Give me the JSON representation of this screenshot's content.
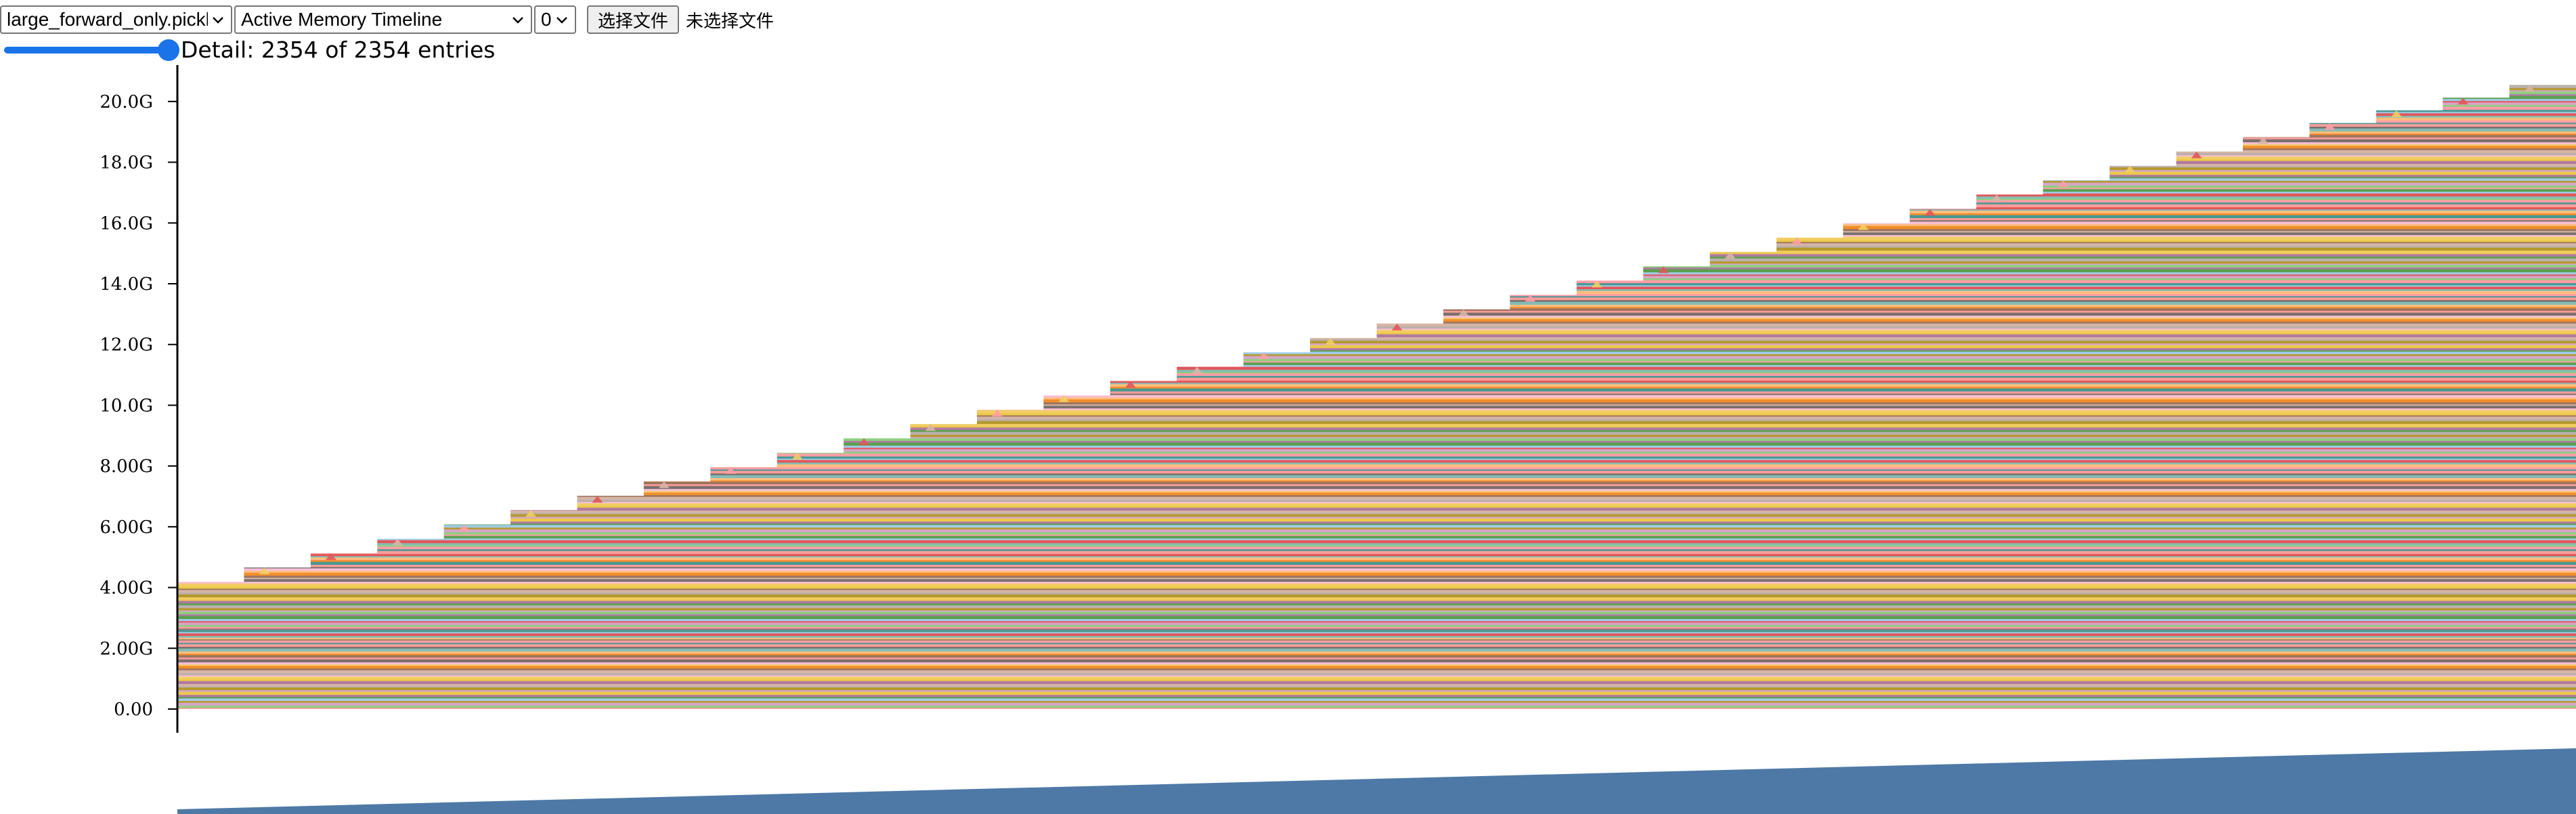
{
  "toolbar": {
    "file_select": {
      "value": "large_forward_only.pickle",
      "icon": "chevron-down-icon"
    },
    "view_select": {
      "value": "Active Memory Timeline",
      "icon": "chevron-down-icon"
    },
    "device_select": {
      "value": "0",
      "icon": "chevron-down-icon"
    },
    "file_button_label": "选择文件",
    "file_status": "未选择文件"
  },
  "detail": {
    "slider_fraction": 1.0,
    "text": "Detail: 2354 of 2354 entries",
    "shown": 2354,
    "total": 2354
  },
  "colors": {
    "axis": "#000000",
    "overview_fill": "#4e79a7",
    "stripe_palette": [
      "#ff9da7",
      "#f28e2b",
      "#edc948",
      "#8cd17d",
      "#ffbe7d",
      "#f1ce63",
      "#d4a6c8",
      "#86bcb6",
      "#fabfd2",
      "#b6992d",
      "#e15759",
      "#79706e",
      "#bab0ac",
      "#a0cbe8",
      "#ff9d9a",
      "#d7b5a6",
      "#59a14f",
      "#499894",
      "#9d7660",
      "#b07aa1"
    ]
  },
  "chart_data": {
    "type": "area",
    "title": "",
    "xlabel": "",
    "ylabel": "",
    "y_tick_labels": [
      "0.00",
      "2.00G",
      "4.00G",
      "6.00G",
      "8.00G",
      "10.0G",
      "12.0G",
      "14.0G",
      "16.0G",
      "18.0G",
      "20.0G"
    ],
    "y_tick_values_gb": [
      0,
      2,
      4,
      6,
      8,
      10,
      12,
      14,
      16,
      18,
      20
    ],
    "ylim_gb": [
      0,
      21.2
    ],
    "series": [
      {
        "values_gb": [
          {
            "t": 0.0,
            "gb": 3.95
          },
          {
            "t": 0.1,
            "gb": 5.65
          },
          {
            "t": 0.2,
            "gb": 7.35
          },
          {
            "t": 0.3,
            "gb": 9.05
          },
          {
            "t": 0.4,
            "gb": 10.75
          },
          {
            "t": 0.5,
            "gb": 12.45
          },
          {
            "t": 0.6,
            "gb": 14.15
          },
          {
            "t": 0.7,
            "gb": 15.85
          },
          {
            "t": 0.8,
            "gb": 17.55
          },
          {
            "t": 0.9,
            "gb": 19.25
          },
          {
            "t": 1.0,
            "gb": 20.75
          }
        ]
      }
    ],
    "step_count": 36,
    "grid": false,
    "legend": "none",
    "overview": {
      "type": "area",
      "start_fraction": 0.0,
      "end_fraction": 1.0
    }
  }
}
